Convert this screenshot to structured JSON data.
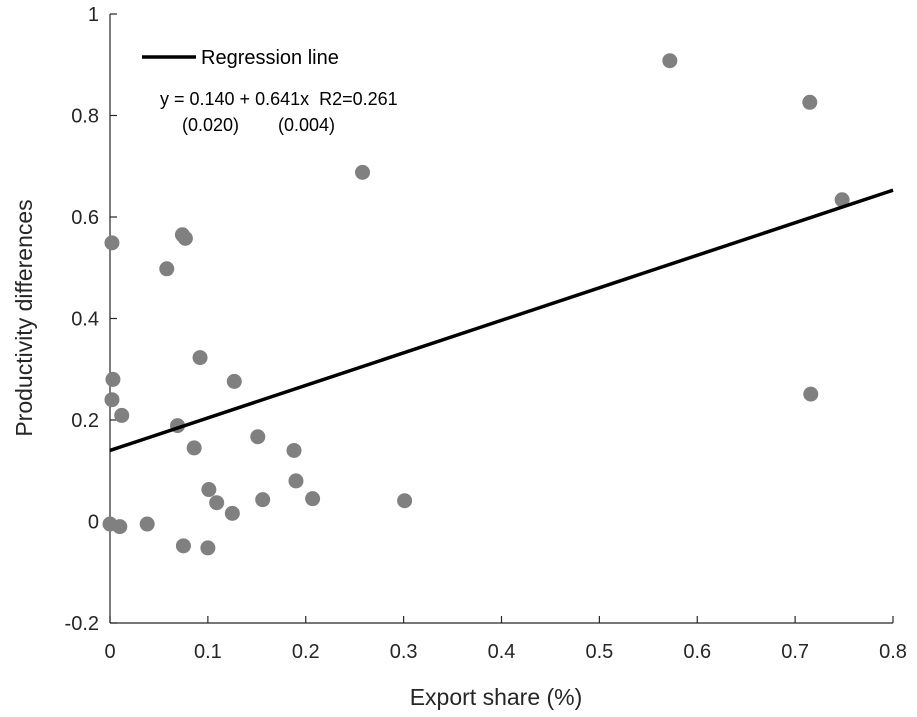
{
  "chart_data": {
    "type": "scatter",
    "xlabel": "Export share (%)",
    "ylabel": "Productivity differences",
    "xlim": [
      0,
      0.8
    ],
    "ylim": [
      -0.2,
      1
    ],
    "x_ticks": [
      0,
      0.1,
      0.2,
      0.3,
      0.4,
      0.5,
      0.6,
      0.7,
      0.8
    ],
    "x_tick_labels": [
      "0",
      "0.1",
      "0.2",
      "0.3",
      "0.4",
      "0.5",
      "0.6",
      "0.7",
      "0.8"
    ],
    "y_ticks": [
      -0.2,
      0,
      0.2,
      0.4,
      0.6,
      0.8,
      1
    ],
    "y_tick_labels": [
      "-0.2",
      "0",
      "0.2",
      "0.4",
      "0.6",
      "0.8",
      "1"
    ],
    "grid": false,
    "point_color": "#808080",
    "line_color": "#000000",
    "points": [
      {
        "x": 0.002,
        "y": 0.549
      },
      {
        "x": 0.003,
        "y": 0.28
      },
      {
        "x": 0.002,
        "y": 0.24
      },
      {
        "x": 0.012,
        "y": 0.209
      },
      {
        "x": 0.0,
        "y": -0.005
      },
      {
        "x": 0.01,
        "y": -0.01
      },
      {
        "x": 0.038,
        "y": -0.005
      },
      {
        "x": 0.058,
        "y": 0.498
      },
      {
        "x": 0.074,
        "y": 0.565
      },
      {
        "x": 0.077,
        "y": 0.558
      },
      {
        "x": 0.069,
        "y": 0.189
      },
      {
        "x": 0.075,
        "y": -0.048
      },
      {
        "x": 0.086,
        "y": 0.145
      },
      {
        "x": 0.092,
        "y": 0.323
      },
      {
        "x": 0.101,
        "y": 0.063
      },
      {
        "x": 0.1,
        "y": -0.052
      },
      {
        "x": 0.109,
        "y": 0.037
      },
      {
        "x": 0.125,
        "y": 0.016
      },
      {
        "x": 0.127,
        "y": 0.276
      },
      {
        "x": 0.151,
        "y": 0.167
      },
      {
        "x": 0.156,
        "y": 0.043
      },
      {
        "x": 0.188,
        "y": 0.14
      },
      {
        "x": 0.19,
        "y": 0.08
      },
      {
        "x": 0.207,
        "y": 0.045
      },
      {
        "x": 0.258,
        "y": 0.688
      },
      {
        "x": 0.301,
        "y": 0.041
      },
      {
        "x": 0.572,
        "y": 0.908
      },
      {
        "x": 0.715,
        "y": 0.826
      },
      {
        "x": 0.716,
        "y": 0.251
      },
      {
        "x": 0.748,
        "y": 0.634
      }
    ],
    "regression": {
      "intercept": 0.14,
      "slope": 0.641,
      "x_range": [
        0,
        0.8
      ]
    },
    "legend": {
      "label": "Regression line",
      "placement": "top-left"
    },
    "annotation": {
      "equation": "y = 0.140 + 0.641x  R2=0.261",
      "se_intercept": "(0.020)",
      "se_slope": "(0.004)"
    }
  }
}
